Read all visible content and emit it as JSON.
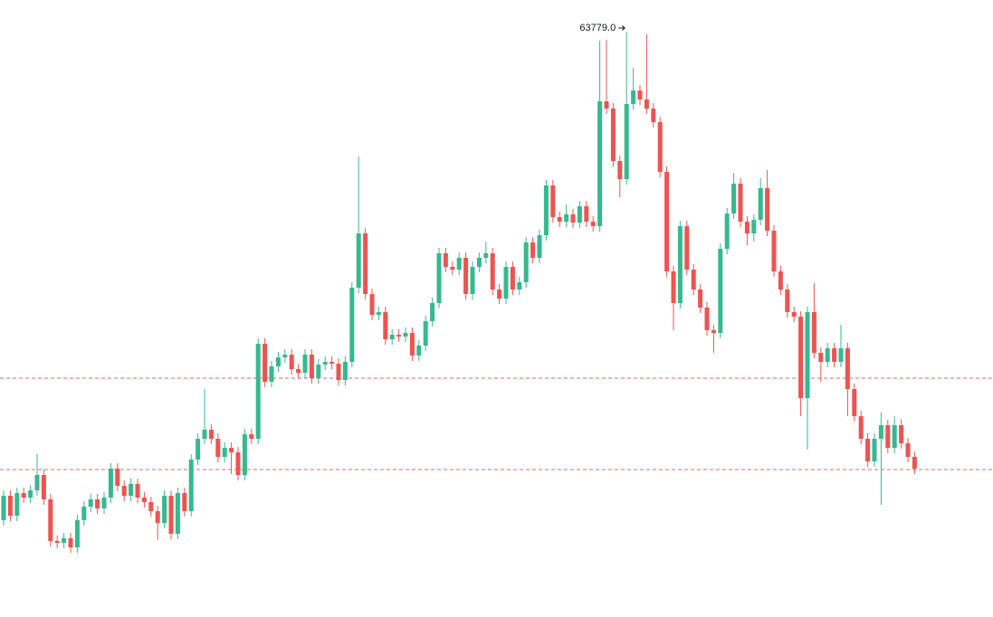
{
  "chart_data": {
    "type": "candlestick",
    "up_color": "#35b98e",
    "down_color": "#ef5350",
    "line_color": "#e06a6a",
    "ylim": [
      47604,
      64654
    ],
    "hlines": [
      54204,
      51679
    ],
    "high_label": {
      "value": 63779,
      "label": "63779.0"
    },
    "open": [
      50279,
      50954,
      50404,
      51029,
      50904,
      51104,
      51529,
      50854,
      49704,
      49654,
      49779,
      49529,
      50279,
      50654,
      50854,
      50604,
      50904,
      51704,
      51229,
      50954,
      51279,
      50904,
      50779,
      50529,
      50204,
      50954,
      49904,
      51029,
      50529,
      51954,
      52529,
      52779,
      52529,
      52029,
      52279,
      52154,
      51529,
      52654,
      52529,
      55154,
      54104,
      54529,
      54779,
      54854,
      54454,
      54354,
      54854,
      54204,
      54579,
      54654,
      54604,
      54154,
      54654,
      56704,
      58204,
      56529,
      55954,
      56029,
      55279,
      55404,
      55354,
      55454,
      54829,
      55104,
      55779,
      56279,
      57654,
      57279,
      57204,
      57529,
      56529,
      57279,
      57529,
      57654,
      56654,
      56404,
      57279,
      56654,
      56854,
      57954,
      57529,
      58154,
      59529,
      58654,
      58529,
      58729,
      58504,
      58954,
      58529,
      58404,
      61854,
      61654,
      60204,
      59704,
      61779,
      62154,
      61904,
      61654,
      61279,
      59904,
      57154,
      56279,
      58404,
      57204,
      56654,
      56154,
      55529,
      55454,
      57779,
      58754,
      59579,
      58529,
      58204,
      58579,
      59454,
      58279,
      57154,
      56654,
      56029,
      55904,
      53654,
      56029,
      54904,
      54654,
      55029,
      54654,
      55029,
      53904,
      53154,
      52529,
      51904,
      52529,
      52904,
      52279,
      52904,
      52404,
      52029
    ],
    "high": [
      51104,
      51104,
      51179,
      51179,
      51254,
      52104,
      51679,
      51004,
      49854,
      49929,
      49929,
      50429,
      50804,
      51004,
      51004,
      51054,
      51854,
      51854,
      51379,
      51429,
      51429,
      51054,
      50929,
      50679,
      51104,
      51104,
      51179,
      51179,
      52104,
      52679,
      53904,
      52929,
      52679,
      52429,
      52429,
      52304,
      52804,
      52804,
      55304,
      55304,
      54679,
      54929,
      55004,
      55004,
      54604,
      55004,
      55004,
      54729,
      54804,
      54804,
      54754,
      54804,
      56854,
      60329,
      58354,
      56679,
      56179,
      56179,
      55554,
      55554,
      55604,
      55604,
      55254,
      55929,
      56429,
      57804,
      57804,
      57429,
      57679,
      57679,
      57429,
      57679,
      57979,
      57804,
      56804,
      57429,
      57429,
      57004,
      58104,
      58104,
      58304,
      59679,
      59679,
      58804,
      59004,
      58879,
      59104,
      59104,
      58679,
      63529,
      63554,
      61804,
      60354,
      63779,
      62779,
      62304,
      63704,
      61804,
      61429,
      60054,
      57304,
      58554,
      58554,
      57354,
      56804,
      56304,
      55679,
      57929,
      58904,
      59879,
      59729,
      58679,
      58729,
      59729,
      59954,
      58429,
      57304,
      56804,
      56179,
      56054,
      56179,
      56829,
      55054,
      55179,
      55179,
      55679,
      55179,
      54054,
      53304,
      52679,
      52679,
      53254,
      53054,
      53154,
      53054,
      52554,
      52179
    ],
    "low": [
      50129,
      50254,
      50254,
      50754,
      50754,
      50954,
      50704,
      49554,
      49504,
      49504,
      49379,
      49379,
      50129,
      50504,
      50454,
      50454,
      50754,
      51079,
      50804,
      50804,
      50754,
      50629,
      50379,
      49729,
      50054,
      49754,
      49754,
      50379,
      50379,
      51804,
      52379,
      52379,
      51879,
      51879,
      51554,
      51379,
      51379,
      52379,
      52379,
      53954,
      53954,
      54379,
      54629,
      54304,
      54204,
      54204,
      54054,
      54054,
      54429,
      54454,
      54004,
      54004,
      54504,
      56554,
      56379,
      55804,
      55804,
      55129,
      55129,
      55204,
      55204,
      54679,
      54679,
      54954,
      55629,
      56129,
      57129,
      57054,
      57054,
      56379,
      56379,
      57129,
      57379,
      56504,
      56254,
      56254,
      56504,
      56504,
      56704,
      57379,
      57379,
      58004,
      58504,
      58379,
      58379,
      58354,
      58354,
      58379,
      58254,
      58254,
      61504,
      60054,
      59204,
      59554,
      61629,
      61754,
      61504,
      61129,
      59754,
      57004,
      55529,
      56129,
      57054,
      56504,
      56004,
      55379,
      54904,
      55304,
      57629,
      58604,
      58379,
      57879,
      57979,
      58429,
      58129,
      57004,
      56504,
      55879,
      55754,
      53154,
      52229,
      54754,
      54104,
      54504,
      54504,
      54504,
      53154,
      53004,
      52379,
      51754,
      51754,
      50704,
      52129,
      52129,
      52254,
      51879,
      51554
    ],
    "close": [
      50954,
      50404,
      51029,
      50904,
      51104,
      51529,
      50854,
      49704,
      49654,
      49779,
      49529,
      50279,
      50654,
      50854,
      50604,
      50904,
      51704,
      51229,
      50954,
      51279,
      50904,
      50779,
      50529,
      50204,
      50954,
      49904,
      51029,
      50529,
      51954,
      52529,
      52779,
      52529,
      52029,
      52279,
      52154,
      51529,
      52654,
      52529,
      55154,
      54104,
      54529,
      54779,
      54854,
      54454,
      54354,
      54854,
      54204,
      54579,
      54654,
      54604,
      54154,
      54654,
      56704,
      58204,
      56529,
      55954,
      56029,
      55279,
      55404,
      55354,
      55454,
      54829,
      55104,
      55779,
      56279,
      57654,
      57279,
      57204,
      57529,
      56529,
      57279,
      57529,
      57654,
      56654,
      56404,
      57279,
      56654,
      56854,
      57954,
      57529,
      58154,
      59529,
      58654,
      58529,
      58729,
      58504,
      58954,
      58529,
      58404,
      61854,
      61654,
      60204,
      59704,
      61779,
      62154,
      61904,
      61654,
      61279,
      59904,
      57154,
      56279,
      58404,
      57204,
      56654,
      56154,
      55529,
      55454,
      57779,
      58754,
      59579,
      58529,
      58204,
      58579,
      59454,
      58279,
      57154,
      56654,
      56029,
      55904,
      53654,
      56029,
      54904,
      54654,
      55029,
      54654,
      55029,
      53904,
      53154,
      52529,
      51904,
      52529,
      52904,
      52279,
      52904,
      52404,
      52029,
      51704
    ]
  }
}
